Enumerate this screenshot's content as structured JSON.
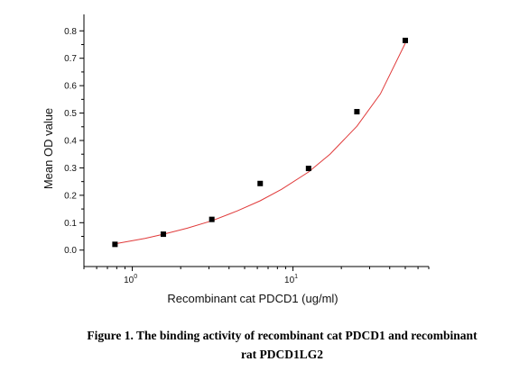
{
  "chart_data": {
    "type": "scatter",
    "x_scale": "log",
    "xlabel": "Recombinant cat PDCD1 (ug/ml)",
    "ylabel": "Mean OD value",
    "xlim": [
      0.5,
      70
    ],
    "ylim": [
      -0.06,
      0.86
    ],
    "y_ticks": [
      0.0,
      0.1,
      0.2,
      0.3,
      0.4,
      0.5,
      0.6,
      0.7,
      0.8
    ],
    "y_tick_labels": [
      "0.0",
      "0.1",
      "0.2",
      "0.3",
      "0.4",
      "0.5",
      "0.6",
      "0.7",
      "0.8"
    ],
    "x_ticks": [
      1,
      10
    ],
    "x_tick_labels": [
      {
        "base": "10",
        "exp": "0"
      },
      {
        "base": "10",
        "exp": "1"
      }
    ],
    "grid": false,
    "series": [
      {
        "marker": "square",
        "color": "#000000",
        "x": [
          0.78,
          1.56,
          3.125,
          6.25,
          12.5,
          25,
          50
        ],
        "y": [
          0.021,
          0.058,
          0.112,
          0.243,
          0.298,
          0.505,
          0.765
        ]
      }
    ],
    "fit_curve": {
      "color": "#e03a3a",
      "x": [
        0.78,
        1.2,
        1.56,
        2.2,
        3.125,
        4.5,
        6.25,
        8.5,
        12.5,
        17,
        25,
        35,
        50
      ],
      "y": [
        0.023,
        0.043,
        0.058,
        0.08,
        0.107,
        0.143,
        0.18,
        0.222,
        0.285,
        0.35,
        0.452,
        0.57,
        0.755
      ]
    }
  },
  "caption": {
    "line1": "Figure 1. The binding activity of recombinant cat PDCD1 and recombinant",
    "line2": "rat PDCD1LG2"
  }
}
